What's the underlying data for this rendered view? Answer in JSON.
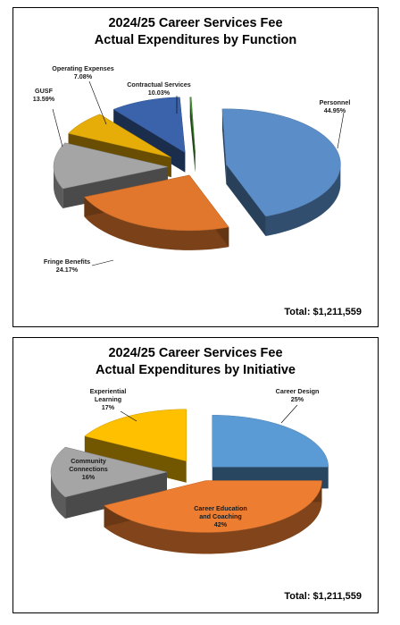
{
  "chart_data": [
    {
      "type": "pie",
      "title": "2024/25 Career Services Fee",
      "subtitle": "Actual Expenditures by Function",
      "total_text": "Total:  $1,211,559",
      "slices": [
        {
          "label": "Personnel",
          "pct_text": "44.95%",
          "value": 44.95,
          "color": "#5b8ec9"
        },
        {
          "label": "Fringe Benefits",
          "pct_text": "24.17%",
          "value": 24.17,
          "color": "#e0772c"
        },
        {
          "label": "GUSF",
          "pct_text": "13.59%",
          "value": 13.59,
          "color": "#a5a5a5"
        },
        {
          "label": "Operating Expenses",
          "pct_text": "7.08%",
          "value": 7.08,
          "color": "#e6ac07"
        },
        {
          "label": "Contractual Services",
          "pct_text": "10.03%",
          "value": 10.03,
          "color": "#3b63ab"
        },
        {
          "label": "",
          "pct_text": "",
          "value": 0.18,
          "color": "#4e9a3a"
        }
      ]
    },
    {
      "type": "pie",
      "title": "2024/25 Career Services Fee",
      "subtitle": "Actual Expenditures by Initiative",
      "total_text": "Total:  $1,211,559",
      "slices": [
        {
          "label": "Career Design",
          "pct_text": "25%",
          "value": 25,
          "color": "#5b9bd5"
        },
        {
          "label": "Career Education and Coaching",
          "pct_text": "42%",
          "value": 42,
          "color": "#ed7d31"
        },
        {
          "label": "Community Connections",
          "pct_text": "16%",
          "value": 16,
          "color": "#a5a5a5"
        },
        {
          "label": "Experiential Learning",
          "pct_text": "17%",
          "value": 17,
          "color": "#ffc000"
        }
      ]
    }
  ]
}
